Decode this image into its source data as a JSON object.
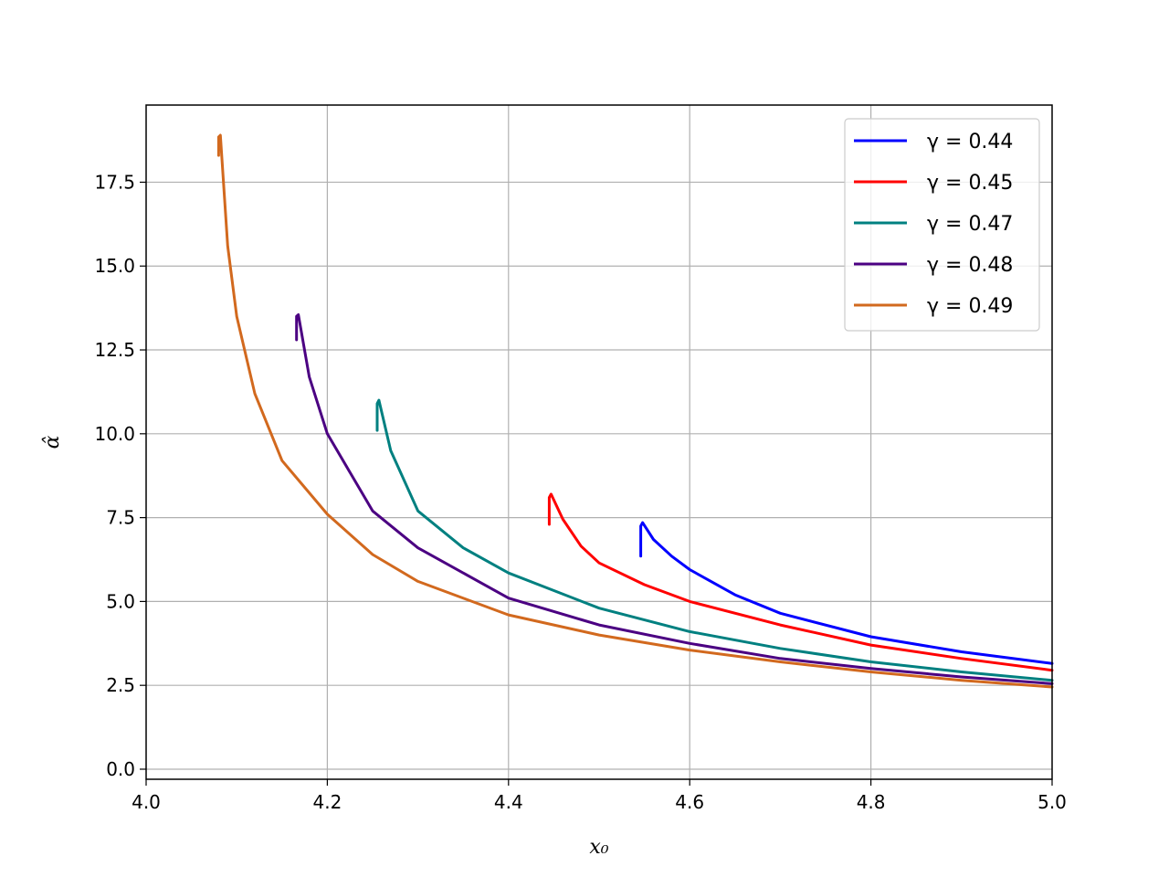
{
  "chart_data": {
    "type": "line",
    "title": "",
    "xlabel": "x₀",
    "ylabel": "α̂",
    "xlim": [
      4.0,
      5.0
    ],
    "ylim": [
      -0.3,
      19.8
    ],
    "xticks": [
      4.0,
      4.2,
      4.4,
      4.6,
      4.8,
      5.0
    ],
    "xtick_labels": [
      "4.0",
      "4.2",
      "4.4",
      "4.6",
      "4.8",
      "5.0"
    ],
    "yticks": [
      0.0,
      2.5,
      5.0,
      7.5,
      10.0,
      12.5,
      15.0,
      17.5
    ],
    "ytick_labels": [
      "0.0",
      "2.5",
      "5.0",
      "7.5",
      "10.0",
      "12.5",
      "15.0",
      "17.5"
    ],
    "grid": true,
    "legend_position": "top-right",
    "series": [
      {
        "name": "γ = 0.44",
        "color": "#0000ff",
        "x": [
          4.546,
          4.546,
          4.548,
          4.56,
          4.58,
          4.6,
          4.65,
          4.7,
          4.8,
          4.9,
          5.0
        ],
        "y": [
          6.35,
          7.25,
          7.35,
          6.85,
          6.35,
          5.95,
          5.2,
          4.65,
          3.95,
          3.5,
          3.15
        ]
      },
      {
        "name": "γ = 0.45",
        "color": "#ff0000",
        "x": [
          4.445,
          4.445,
          4.447,
          4.46,
          4.48,
          4.5,
          4.55,
          4.6,
          4.7,
          4.8,
          4.9,
          5.0
        ],
        "y": [
          7.3,
          8.1,
          8.2,
          7.45,
          6.65,
          6.15,
          5.5,
          5.0,
          4.3,
          3.7,
          3.3,
          2.95
        ]
      },
      {
        "name": "γ = 0.47",
        "color": "#008080",
        "x": [
          4.255,
          4.255,
          4.257,
          4.27,
          4.3,
          4.35,
          4.4,
          4.5,
          4.6,
          4.7,
          4.8,
          4.9,
          5.0
        ],
        "y": [
          10.1,
          10.9,
          11.0,
          9.5,
          7.7,
          6.6,
          5.85,
          4.8,
          4.1,
          3.6,
          3.2,
          2.9,
          2.65
        ]
      },
      {
        "name": "γ = 0.48",
        "color": "#4b0082",
        "x": [
          4.166,
          4.166,
          4.168,
          4.18,
          4.2,
          4.25,
          4.3,
          4.4,
          4.5,
          4.6,
          4.7,
          4.8,
          4.9,
          5.0
        ],
        "y": [
          12.8,
          13.5,
          13.55,
          11.7,
          10.0,
          7.7,
          6.6,
          5.1,
          4.3,
          3.75,
          3.3,
          3.0,
          2.75,
          2.55
        ]
      },
      {
        "name": "γ = 0.49",
        "color": "#d2691e",
        "x": [
          4.08,
          4.08,
          4.082,
          4.09,
          4.1,
          4.12,
          4.15,
          4.2,
          4.25,
          4.3,
          4.4,
          4.5,
          4.6,
          4.7,
          4.8,
          4.9,
          5.0
        ],
        "y": [
          18.3,
          18.85,
          18.9,
          15.6,
          13.5,
          11.2,
          9.2,
          7.6,
          6.4,
          5.6,
          4.6,
          4.0,
          3.55,
          3.2,
          2.9,
          2.65,
          2.45
        ]
      }
    ]
  }
}
